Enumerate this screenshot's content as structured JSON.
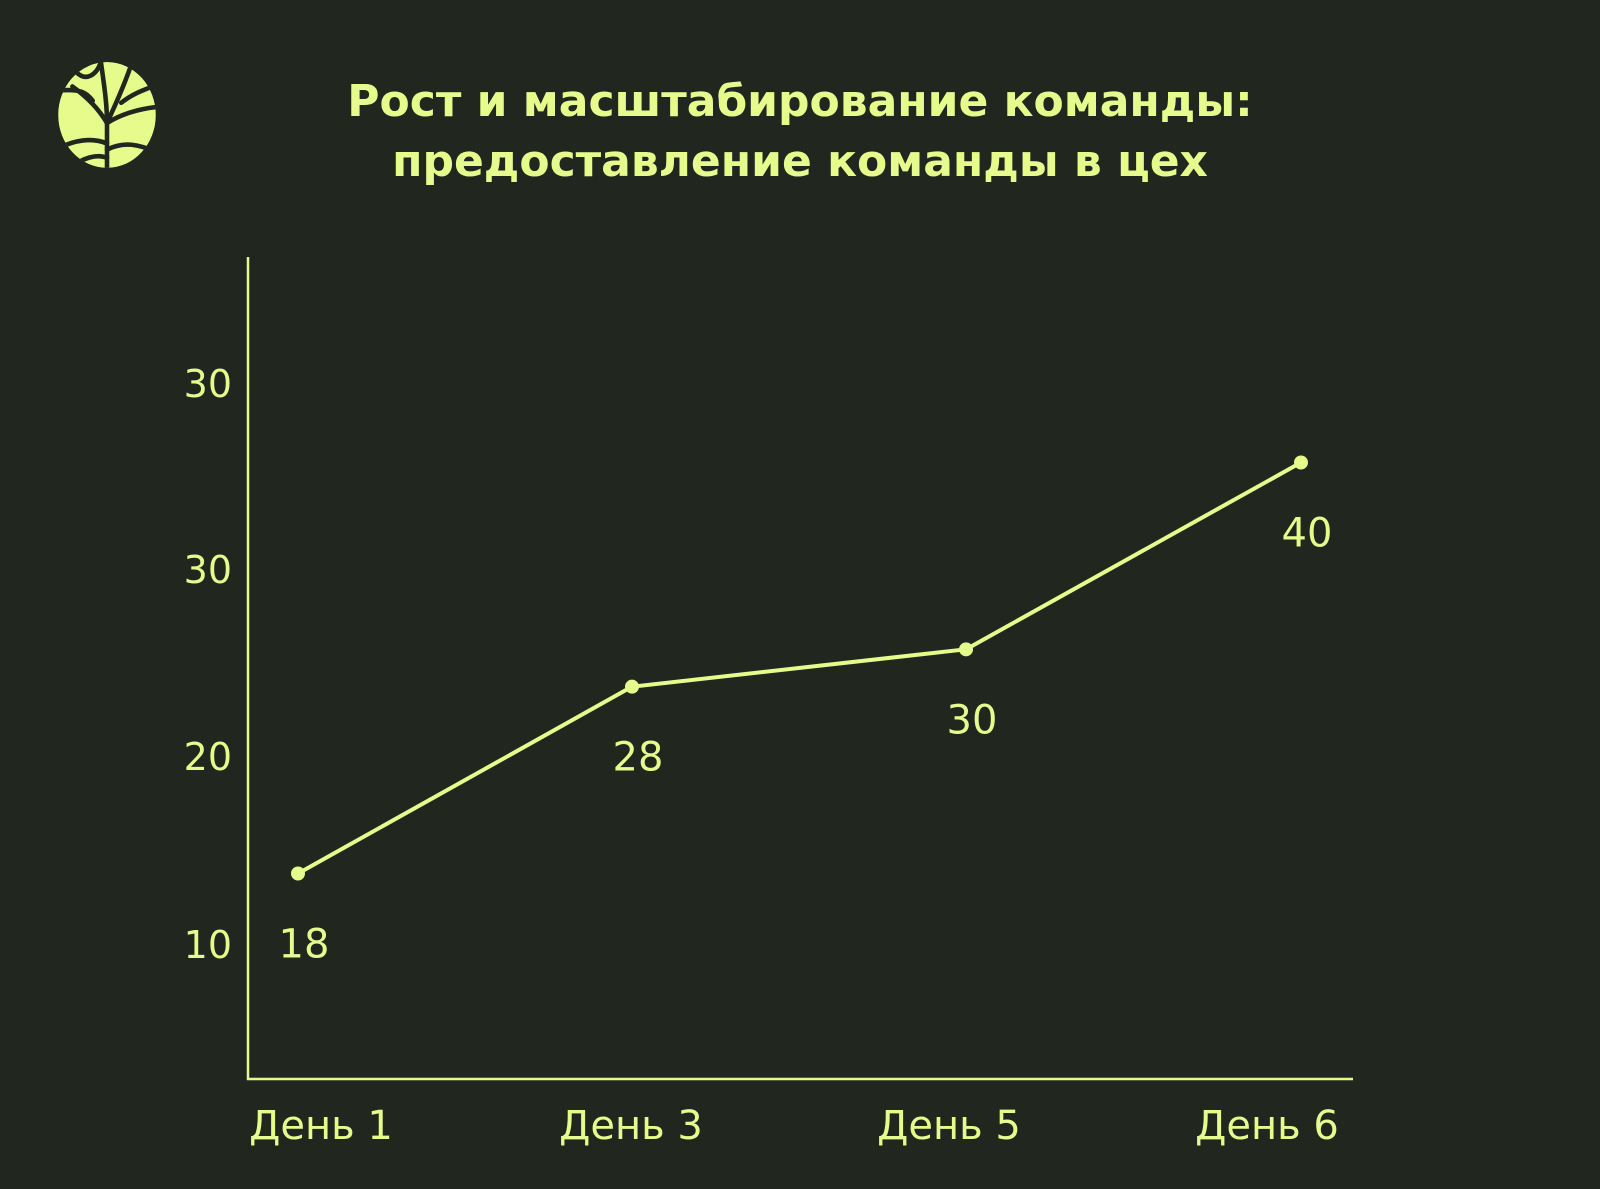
{
  "colors": {
    "background": "#21261f",
    "accent": "#e6fb8c"
  },
  "header": {
    "logo_icon": "tree-icon",
    "title_line1": "Рост и масштабирование команды:",
    "title_line2": "предоставление команды в цех"
  },
  "chart_data": {
    "type": "line",
    "title": "Рост и масштабирование команды: предоставление команды в цех",
    "xlabel": "",
    "ylabel": "",
    "grid": false,
    "categories": [
      "День 1",
      "День 3",
      "День 5",
      "День 6"
    ],
    "series": [
      {
        "values": [
          18,
          28,
          30,
          40
        ],
        "data_labels": [
          "18",
          "28",
          "30",
          "40"
        ]
      }
    ],
    "y_tick_labels": [
      "10",
      "20",
      "30",
      "30"
    ],
    "ylim": [
      7,
      51
    ]
  }
}
